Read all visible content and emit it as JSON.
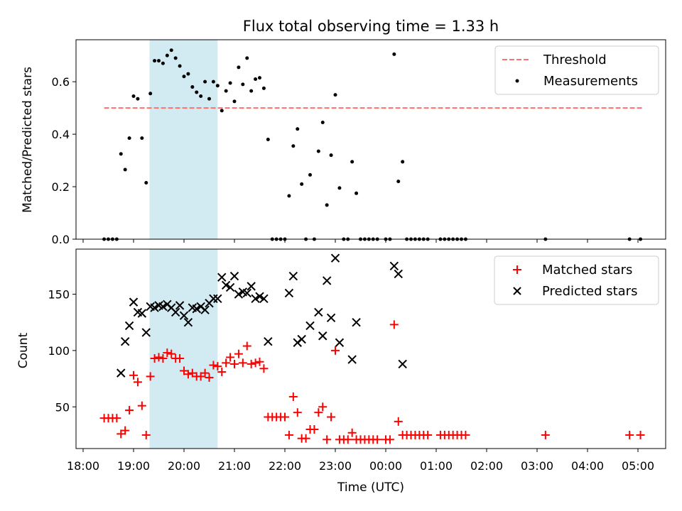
{
  "chart_data": [
    {
      "type": "scatter",
      "title": "Flux total observing time = 1.33 h",
      "xlabel": "",
      "ylabel": "Matched/Predicted stars",
      "ylim": [
        0,
        0.76
      ],
      "xlim": [
        "18:00",
        "05:00"
      ],
      "yticks": [
        0.0,
        0.2,
        0.4,
        0.6
      ],
      "ytick_labels": [
        "0.0",
        "0.2",
        "0.4",
        "0.6"
      ],
      "legend_position": "top-right",
      "highlight_span": {
        "start": "19:19",
        "end": "20:40",
        "color": "#add8e6"
      },
      "threshold": {
        "name": "Threshold",
        "value": 0.5,
        "x_start": "18:25",
        "x_end": "05:05",
        "color": "#ff7070",
        "style": "dashed"
      },
      "series": [
        {
          "name": "Measurements",
          "color": "#000000",
          "marker": "dot",
          "points": [
            [
              "18:25",
              0
            ],
            [
              "18:30",
              0
            ],
            [
              "18:35",
              0
            ],
            [
              "18:40",
              0
            ],
            [
              "18:45",
              0.325
            ],
            [
              "18:50",
              0.265
            ],
            [
              "18:55",
              0.385
            ],
            [
              "19:00",
              0.545
            ],
            [
              "19:05",
              0.535
            ],
            [
              "19:10",
              0.385
            ],
            [
              "19:15",
              0.215
            ],
            [
              "19:20",
              0.555
            ],
            [
              "19:25",
              0.68
            ],
            [
              "19:30",
              0.68
            ],
            [
              "19:35",
              0.67
            ],
            [
              "19:40",
              0.7
            ],
            [
              "19:45",
              0.72
            ],
            [
              "19:50",
              0.69
            ],
            [
              "19:55",
              0.66
            ],
            [
              "20:00",
              0.62
            ],
            [
              "20:05",
              0.63
            ],
            [
              "20:10",
              0.58
            ],
            [
              "20:15",
              0.56
            ],
            [
              "20:20",
              0.545
            ],
            [
              "20:25",
              0.6
            ],
            [
              "20:30",
              0.535
            ],
            [
              "20:35",
              0.6
            ],
            [
              "20:40",
              0.585
            ],
            [
              "20:45",
              0.49
            ],
            [
              "20:50",
              0.565
            ],
            [
              "20:55",
              0.595
            ],
            [
              "21:00",
              0.525
            ],
            [
              "21:05",
              0.655
            ],
            [
              "21:10",
              0.59
            ],
            [
              "21:15",
              0.69
            ],
            [
              "21:20",
              0.565
            ],
            [
              "21:25",
              0.61
            ],
            [
              "21:30",
              0.615
            ],
            [
              "21:35",
              0.575
            ],
            [
              "21:40",
              0.38
            ],
            [
              "21:45",
              0
            ],
            [
              "21:50",
              0
            ],
            [
              "21:55",
              0
            ],
            [
              "22:00",
              0
            ],
            [
              "22:05",
              0.165
            ],
            [
              "22:10",
              0.355
            ],
            [
              "22:15",
              0.42
            ],
            [
              "22:20",
              0.21
            ],
            [
              "22:25",
              0
            ],
            [
              "22:30",
              0.245
            ],
            [
              "22:35",
              0
            ],
            [
              "22:40",
              0.335
            ],
            [
              "22:45",
              0.445
            ],
            [
              "22:50",
              0.13
            ],
            [
              "22:55",
              0.32
            ],
            [
              "23:00",
              0.55
            ],
            [
              "23:05",
              0.195
            ],
            [
              "23:10",
              0
            ],
            [
              "23:15",
              0
            ],
            [
              "23:20",
              0.295
            ],
            [
              "23:25",
              0.175
            ],
            [
              "23:30",
              0
            ],
            [
              "23:35",
              0
            ],
            [
              "23:40",
              0
            ],
            [
              "23:45",
              0
            ],
            [
              "23:50",
              0
            ],
            [
              "00:00",
              0
            ],
            [
              "00:05",
              0
            ],
            [
              "00:10",
              0.705
            ],
            [
              "00:15",
              0.22
            ],
            [
              "00:20",
              0.295
            ],
            [
              "00:25",
              0
            ],
            [
              "00:30",
              0
            ],
            [
              "00:35",
              0
            ],
            [
              "00:40",
              0
            ],
            [
              "00:45",
              0
            ],
            [
              "00:50",
              0
            ],
            [
              "01:05",
              0
            ],
            [
              "01:10",
              0
            ],
            [
              "01:15",
              0
            ],
            [
              "01:20",
              0
            ],
            [
              "01:25",
              0
            ],
            [
              "01:30",
              0
            ],
            [
              "01:35",
              0
            ],
            [
              "03:10",
              0
            ],
            [
              "04:50",
              0
            ],
            [
              "05:03",
              0
            ]
          ]
        }
      ]
    },
    {
      "type": "scatter",
      "title": "",
      "xlabel": "Time (UTC)",
      "ylabel": "Count",
      "ylim": [
        13,
        190
      ],
      "xlim": [
        "18:00",
        "05:00"
      ],
      "yticks": [
        50,
        100,
        150
      ],
      "ytick_labels": [
        "50",
        "100",
        "150"
      ],
      "xticks": [
        "18:00",
        "19:00",
        "20:00",
        "21:00",
        "22:00",
        "23:00",
        "00:00",
        "01:00",
        "02:00",
        "03:00",
        "04:00",
        "05:00"
      ],
      "xtick_labels": [
        "18:00",
        "19:00",
        "20:00",
        "21:00",
        "22:00",
        "23:00",
        "00:00",
        "01:00",
        "02:00",
        "03:00",
        "04:00",
        "05:00"
      ],
      "legend_position": "top-right",
      "highlight_span": {
        "start": "19:19",
        "end": "20:40",
        "color": "#add8e6"
      },
      "series": [
        {
          "name": "Matched stars",
          "color": "#ff0000",
          "marker": "plus",
          "points": [
            [
              "18:25",
              40
            ],
            [
              "18:30",
              40
            ],
            [
              "18:35",
              40
            ],
            [
              "18:40",
              40
            ],
            [
              "18:45",
              26
            ],
            [
              "18:50",
              29
            ],
            [
              "18:55",
              47
            ],
            [
              "19:00",
              78
            ],
            [
              "19:05",
              72
            ],
            [
              "19:10",
              51
            ],
            [
              "19:15",
              25
            ],
            [
              "19:20",
              77
            ],
            [
              "19:25",
              93
            ],
            [
              "19:30",
              94
            ],
            [
              "19:35",
              93
            ],
            [
              "19:40",
              98
            ],
            [
              "19:45",
              97
            ],
            [
              "19:50",
              93
            ],
            [
              "19:55",
              93
            ],
            [
              "20:00",
              82
            ],
            [
              "20:05",
              79
            ],
            [
              "20:10",
              80
            ],
            [
              "20:15",
              77
            ],
            [
              "20:20",
              77
            ],
            [
              "20:25",
              80
            ],
            [
              "20:30",
              76
            ],
            [
              "20:35",
              87
            ],
            [
              "20:40",
              86
            ],
            [
              "20:45",
              81
            ],
            [
              "20:50",
              89
            ],
            [
              "20:55",
              94
            ],
            [
              "21:00",
              88
            ],
            [
              "21:05",
              97
            ],
            [
              "21:10",
              89
            ],
            [
              "21:15",
              104
            ],
            [
              "21:20",
              88
            ],
            [
              "21:25",
              89
            ],
            [
              "21:30",
              90
            ],
            [
              "21:35",
              84
            ],
            [
              "21:40",
              41
            ],
            [
              "21:45",
              41
            ],
            [
              "21:50",
              41
            ],
            [
              "21:55",
              41
            ],
            [
              "22:00",
              41
            ],
            [
              "22:05",
              25
            ],
            [
              "22:10",
              59
            ],
            [
              "22:15",
              45
            ],
            [
              "22:20",
              22
            ],
            [
              "22:25",
              22
            ],
            [
              "22:30",
              30
            ],
            [
              "22:35",
              30
            ],
            [
              "22:40",
              45
            ],
            [
              "22:45",
              50
            ],
            [
              "22:50",
              21
            ],
            [
              "22:55",
              41
            ],
            [
              "23:00",
              100
            ],
            [
              "23:05",
              21
            ],
            [
              "23:10",
              21
            ],
            [
              "23:15",
              21
            ],
            [
              "23:20",
              27
            ],
            [
              "23:25",
              21
            ],
            [
              "23:30",
              21
            ],
            [
              "23:35",
              21
            ],
            [
              "23:40",
              21
            ],
            [
              "23:45",
              21
            ],
            [
              "23:50",
              21
            ],
            [
              "00:00",
              21
            ],
            [
              "00:05",
              21
            ],
            [
              "00:10",
              123
            ],
            [
              "00:15",
              37
            ],
            [
              "00:20",
              25
            ],
            [
              "00:25",
              25
            ],
            [
              "00:30",
              25
            ],
            [
              "00:35",
              25
            ],
            [
              "00:40",
              25
            ],
            [
              "00:45",
              25
            ],
            [
              "00:50",
              25
            ],
            [
              "01:05",
              25
            ],
            [
              "01:10",
              25
            ],
            [
              "01:15",
              25
            ],
            [
              "01:20",
              25
            ],
            [
              "01:25",
              25
            ],
            [
              "01:30",
              25
            ],
            [
              "01:35",
              25
            ],
            [
              "03:10",
              25
            ],
            [
              "04:50",
              25
            ],
            [
              "05:03",
              25
            ]
          ]
        },
        {
          "name": "Predicted stars",
          "color": "#000000",
          "marker": "x",
          "points": [
            [
              "18:45",
              80
            ],
            [
              "18:50",
              108
            ],
            [
              "18:55",
              122
            ],
            [
              "19:00",
              143
            ],
            [
              "19:05",
              134
            ],
            [
              "19:10",
              133
            ],
            [
              "19:15",
              116
            ],
            [
              "19:20",
              139
            ],
            [
              "19:25",
              138
            ],
            [
              "19:30",
              140
            ],
            [
              "19:35",
              139
            ],
            [
              "19:40",
              141
            ],
            [
              "19:45",
              138
            ],
            [
              "19:50",
              134
            ],
            [
              "19:55",
              140
            ],
            [
              "20:00",
              131
            ],
            [
              "20:05",
              125
            ],
            [
              "20:10",
              138
            ],
            [
              "20:15",
              137
            ],
            [
              "20:20",
              139
            ],
            [
              "20:25",
              136
            ],
            [
              "20:30",
              142
            ],
            [
              "20:35",
              146
            ],
            [
              "20:40",
              146
            ],
            [
              "20:45",
              165
            ],
            [
              "20:50",
              158
            ],
            [
              "20:55",
              156
            ],
            [
              "21:00",
              166
            ],
            [
              "21:05",
              150
            ],
            [
              "21:10",
              152
            ],
            [
              "21:15",
              151
            ],
            [
              "21:20",
              157
            ],
            [
              "21:25",
              146
            ],
            [
              "21:30",
              148
            ],
            [
              "21:35",
              146
            ],
            [
              "21:40",
              108
            ],
            [
              "22:05",
              151
            ],
            [
              "22:10",
              166
            ],
            [
              "22:15",
              107
            ],
            [
              "22:20",
              110
            ],
            [
              "22:30",
              122
            ],
            [
              "22:40",
              134
            ],
            [
              "22:45",
              113
            ],
            [
              "22:50",
              162
            ],
            [
              "22:55",
              129
            ],
            [
              "23:00",
              182
            ],
            [
              "23:05",
              107
            ],
            [
              "23:20",
              92
            ],
            [
              "23:25",
              125
            ],
            [
              "00:10",
              175
            ],
            [
              "00:15",
              168
            ],
            [
              "00:20",
              88
            ]
          ]
        }
      ]
    }
  ]
}
